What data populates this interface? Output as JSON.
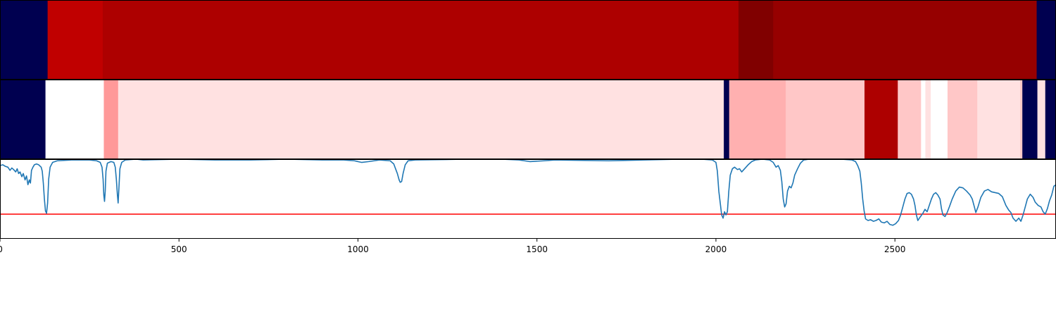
{
  "chart_data": [
    {
      "type": "heatmap",
      "xlim": [
        0,
        2950
      ],
      "segments": [
        {
          "start": 0,
          "end": 133,
          "color": "#000050"
        },
        {
          "start": 133,
          "end": 287,
          "color": "#c00000"
        },
        {
          "start": 287,
          "end": 2063,
          "color": "#ad0000"
        },
        {
          "start": 2063,
          "end": 2160,
          "color": "#800000"
        },
        {
          "start": 2160,
          "end": 2896,
          "color": "#960000"
        },
        {
          "start": 2896,
          "end": 2950,
          "color": "#000050"
        }
      ]
    },
    {
      "type": "heatmap",
      "xlim": [
        0,
        2950
      ],
      "segments": [
        {
          "start": 0,
          "end": 127,
          "color": "#000050"
        },
        {
          "start": 127,
          "end": 290,
          "color": "#ffffff"
        },
        {
          "start": 290,
          "end": 330,
          "color": "#ff9999"
        },
        {
          "start": 330,
          "end": 2022,
          "color": "#ffe1e1"
        },
        {
          "start": 2022,
          "end": 2037,
          "color": "#000050"
        },
        {
          "start": 2037,
          "end": 2195,
          "color": "#ffb0b0"
        },
        {
          "start": 2195,
          "end": 2415,
          "color": "#ffc7c7"
        },
        {
          "start": 2415,
          "end": 2508,
          "color": "#ad0000"
        },
        {
          "start": 2508,
          "end": 2573,
          "color": "#ffc7c7"
        },
        {
          "start": 2573,
          "end": 2585,
          "color": "#ffffff"
        },
        {
          "start": 2585,
          "end": 2600,
          "color": "#ffe1e1"
        },
        {
          "start": 2600,
          "end": 2647,
          "color": "#ffffff"
        },
        {
          "start": 2647,
          "end": 2730,
          "color": "#ffc7c7"
        },
        {
          "start": 2730,
          "end": 2850,
          "color": "#ffe1e1"
        },
        {
          "start": 2850,
          "end": 2856,
          "color": "#ffc7c7"
        },
        {
          "start": 2856,
          "end": 2898,
          "color": "#000050"
        },
        {
          "start": 2898,
          "end": 2920,
          "color": "#ffe1e1"
        },
        {
          "start": 2920,
          "end": 2950,
          "color": "#000050"
        }
      ]
    },
    {
      "type": "line",
      "xlim": [
        0,
        2950
      ],
      "ylim": [
        0,
        1
      ],
      "xticks": [
        {
          "value": 0,
          "label": "0"
        },
        {
          "value": 500,
          "label": "500"
        },
        {
          "value": 1000,
          "label": "1000"
        },
        {
          "value": 1500,
          "label": "1500"
        },
        {
          "value": 2000,
          "label": "2000"
        },
        {
          "value": 2500,
          "label": "2500"
        }
      ],
      "threshold": {
        "value": 0.31,
        "color": "#ff0000"
      },
      "series_color": "#1f77b4",
      "points": [
        [
          0,
          0.92
        ],
        [
          8,
          0.93
        ],
        [
          15,
          0.91
        ],
        [
          22,
          0.9
        ],
        [
          28,
          0.86
        ],
        [
          33,
          0.89
        ],
        [
          38,
          0.87
        ],
        [
          44,
          0.84
        ],
        [
          48,
          0.88
        ],
        [
          52,
          0.82
        ],
        [
          56,
          0.84
        ],
        [
          61,
          0.78
        ],
        [
          65,
          0.82
        ],
        [
          70,
          0.74
        ],
        [
          74,
          0.79
        ],
        [
          78,
          0.68
        ],
        [
          82,
          0.74
        ],
        [
          85,
          0.7
        ],
        [
          88,
          0.86
        ],
        [
          92,
          0.9
        ],
        [
          96,
          0.93
        ],
        [
          102,
          0.94
        ],
        [
          108,
          0.93
        ],
        [
          115,
          0.9
        ],
        [
          118,
          0.85
        ],
        [
          121,
          0.7
        ],
        [
          124,
          0.5
        ],
        [
          127,
          0.35
        ],
        [
          130,
          0.32
        ],
        [
          133,
          0.45
        ],
        [
          136,
          0.75
        ],
        [
          140,
          0.9
        ],
        [
          147,
          0.96
        ],
        [
          160,
          0.98
        ],
        [
          200,
          0.99
        ],
        [
          250,
          0.99
        ],
        [
          270,
          0.98
        ],
        [
          280,
          0.96
        ],
        [
          285,
          0.9
        ],
        [
          288,
          0.75
        ],
        [
          290,
          0.55
        ],
        [
          292,
          0.47
        ],
        [
          294,
          0.6
        ],
        [
          296,
          0.85
        ],
        [
          300,
          0.95
        ],
        [
          310,
          0.97
        ],
        [
          318,
          0.96
        ],
        [
          322,
          0.9
        ],
        [
          325,
          0.75
        ],
        [
          328,
          0.55
        ],
        [
          330,
          0.45
        ],
        [
          332,
          0.62
        ],
        [
          335,
          0.88
        ],
        [
          340,
          0.96
        ],
        [
          350,
          0.99
        ],
        [
          380,
          1.0
        ],
        [
          400,
          0.99
        ],
        [
          500,
          1.0
        ],
        [
          600,
          0.99
        ],
        [
          700,
          0.99
        ],
        [
          800,
          1.0
        ],
        [
          900,
          0.99
        ],
        [
          960,
          0.99
        ],
        [
          990,
          0.98
        ],
        [
          1010,
          0.96
        ],
        [
          1030,
          0.97
        ],
        [
          1060,
          0.99
        ],
        [
          1090,
          0.98
        ],
        [
          1100,
          0.94
        ],
        [
          1105,
          0.88
        ],
        [
          1110,
          0.82
        ],
        [
          1115,
          0.74
        ],
        [
          1118,
          0.71
        ],
        [
          1122,
          0.72
        ],
        [
          1126,
          0.82
        ],
        [
          1132,
          0.93
        ],
        [
          1140,
          0.98
        ],
        [
          1160,
          0.99
        ],
        [
          1300,
          1.0
        ],
        [
          1400,
          1.0
        ],
        [
          1450,
          0.99
        ],
        [
          1480,
          0.97
        ],
        [
          1520,
          0.98
        ],
        [
          1550,
          0.99
        ],
        [
          1700,
          0.98
        ],
        [
          1800,
          0.99
        ],
        [
          1900,
          1.0
        ],
        [
          1960,
          1.0
        ],
        [
          1990,
          0.99
        ],
        [
          2000,
          0.96
        ],
        [
          2004,
          0.85
        ],
        [
          2008,
          0.6
        ],
        [
          2012,
          0.45
        ],
        [
          2016,
          0.3
        ],
        [
          2020,
          0.26
        ],
        [
          2024,
          0.34
        ],
        [
          2028,
          0.3
        ],
        [
          2032,
          0.34
        ],
        [
          2036,
          0.6
        ],
        [
          2040,
          0.8
        ],
        [
          2046,
          0.88
        ],
        [
          2052,
          0.9
        ],
        [
          2060,
          0.87
        ],
        [
          2066,
          0.88
        ],
        [
          2072,
          0.84
        ],
        [
          2080,
          0.88
        ],
        [
          2090,
          0.93
        ],
        [
          2100,
          0.97
        ],
        [
          2110,
          0.99
        ],
        [
          2130,
          1.0
        ],
        [
          2150,
          0.99
        ],
        [
          2160,
          0.96
        ],
        [
          2168,
          0.9
        ],
        [
          2174,
          0.92
        ],
        [
          2180,
          0.86
        ],
        [
          2184,
          0.72
        ],
        [
          2188,
          0.5
        ],
        [
          2192,
          0.4
        ],
        [
          2196,
          0.44
        ],
        [
          2200,
          0.6
        ],
        [
          2205,
          0.66
        ],
        [
          2210,
          0.64
        ],
        [
          2215,
          0.7
        ],
        [
          2220,
          0.8
        ],
        [
          2228,
          0.88
        ],
        [
          2236,
          0.95
        ],
        [
          2245,
          0.99
        ],
        [
          2260,
          1.0
        ],
        [
          2350,
          1.0
        ],
        [
          2380,
          0.99
        ],
        [
          2390,
          0.97
        ],
        [
          2396,
          0.92
        ],
        [
          2402,
          0.85
        ],
        [
          2406,
          0.7
        ],
        [
          2410,
          0.5
        ],
        [
          2414,
          0.35
        ],
        [
          2418,
          0.25
        ],
        [
          2425,
          0.23
        ],
        [
          2432,
          0.24
        ],
        [
          2440,
          0.22
        ],
        [
          2447,
          0.23
        ],
        [
          2455,
          0.25
        ],
        [
          2462,
          0.21
        ],
        [
          2470,
          0.2
        ],
        [
          2478,
          0.22
        ],
        [
          2486,
          0.18
        ],
        [
          2494,
          0.17
        ],
        [
          2502,
          0.19
        ],
        [
          2510,
          0.23
        ],
        [
          2516,
          0.3
        ],
        [
          2522,
          0.4
        ],
        [
          2528,
          0.5
        ],
        [
          2534,
          0.57
        ],
        [
          2540,
          0.58
        ],
        [
          2546,
          0.56
        ],
        [
          2552,
          0.5
        ],
        [
          2556,
          0.42
        ],
        [
          2560,
          0.3
        ],
        [
          2564,
          0.23
        ],
        [
          2570,
          0.27
        ],
        [
          2578,
          0.32
        ],
        [
          2584,
          0.37
        ],
        [
          2590,
          0.34
        ],
        [
          2596,
          0.42
        ],
        [
          2602,
          0.5
        ],
        [
          2608,
          0.56
        ],
        [
          2614,
          0.58
        ],
        [
          2620,
          0.55
        ],
        [
          2626,
          0.5
        ],
        [
          2630,
          0.38
        ],
        [
          2634,
          0.3
        ],
        [
          2640,
          0.28
        ],
        [
          2646,
          0.33
        ],
        [
          2652,
          0.4
        ],
        [
          2660,
          0.5
        ],
        [
          2670,
          0.6
        ],
        [
          2680,
          0.65
        ],
        [
          2690,
          0.64
        ],
        [
          2700,
          0.6
        ],
        [
          2710,
          0.55
        ],
        [
          2716,
          0.5
        ],
        [
          2722,
          0.4
        ],
        [
          2726,
          0.33
        ],
        [
          2732,
          0.4
        ],
        [
          2740,
          0.52
        ],
        [
          2750,
          0.6
        ],
        [
          2760,
          0.62
        ],
        [
          2770,
          0.59
        ],
        [
          2780,
          0.58
        ],
        [
          2790,
          0.57
        ],
        [
          2800,
          0.53
        ],
        [
          2810,
          0.42
        ],
        [
          2818,
          0.36
        ],
        [
          2824,
          0.33
        ],
        [
          2830,
          0.26
        ],
        [
          2838,
          0.22
        ],
        [
          2846,
          0.26
        ],
        [
          2852,
          0.22
        ],
        [
          2858,
          0.3
        ],
        [
          2864,
          0.4
        ],
        [
          2870,
          0.5
        ],
        [
          2878,
          0.56
        ],
        [
          2886,
          0.52
        ],
        [
          2892,
          0.46
        ],
        [
          2900,
          0.42
        ],
        [
          2908,
          0.4
        ],
        [
          2914,
          0.34
        ],
        [
          2920,
          0.31
        ],
        [
          2926,
          0.38
        ],
        [
          2932,
          0.48
        ],
        [
          2938,
          0.55
        ],
        [
          2944,
          0.66
        ],
        [
          2950,
          0.68
        ]
      ]
    }
  ]
}
